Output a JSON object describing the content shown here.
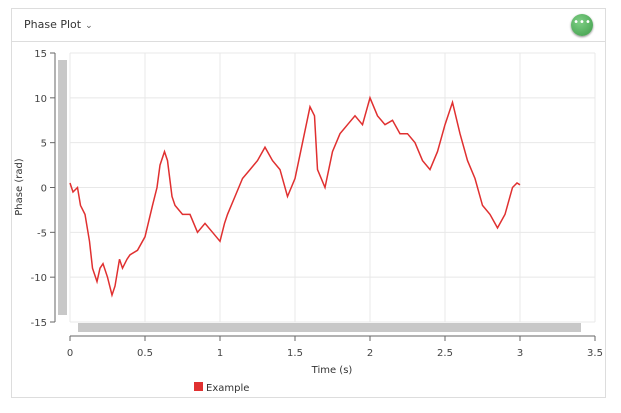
{
  "header": {
    "title": "Phase Plot",
    "more_icon": "ellipsis-icon"
  },
  "chart_data": {
    "type": "line",
    "xlabel": "Time (s)",
    "ylabel": "Phase (rad)",
    "xlim": [
      0,
      3.5
    ],
    "ylim": [
      -15,
      15
    ],
    "xticks": [
      "0",
      "0.5",
      "1",
      "1.5",
      "2",
      "2.5",
      "3",
      "3.5"
    ],
    "yticks": [
      "15",
      "10",
      "5",
      "0",
      "-5",
      "-10",
      "-15"
    ],
    "grid": true,
    "legend": "bottom-left",
    "series": [
      {
        "name": "Example",
        "color": "#e03030",
        "x": [
          0,
          0.02,
          0.05,
          0.07,
          0.1,
          0.13,
          0.15,
          0.18,
          0.2,
          0.22,
          0.25,
          0.28,
          0.3,
          0.33,
          0.35,
          0.38,
          0.4,
          0.45,
          0.5,
          0.55,
          0.58,
          0.6,
          0.63,
          0.65,
          0.68,
          0.7,
          0.75,
          0.8,
          0.85,
          0.9,
          0.95,
          1.0,
          1.03,
          1.05,
          1.1,
          1.15,
          1.2,
          1.25,
          1.3,
          1.35,
          1.4,
          1.45,
          1.5,
          1.55,
          1.6,
          1.63,
          1.65,
          1.7,
          1.75,
          1.8,
          1.85,
          1.9,
          1.95,
          2.0,
          2.05,
          2.1,
          2.15,
          2.2,
          2.25,
          2.3,
          2.35,
          2.4,
          2.45,
          2.5,
          2.55,
          2.6,
          2.65,
          2.7,
          2.75,
          2.8,
          2.85,
          2.9,
          2.95,
          2.98,
          3.0
        ],
        "y": [
          0.5,
          -0.5,
          0,
          -2,
          -3,
          -6,
          -9,
          -10.5,
          -9,
          -8.5,
          -10,
          -12,
          -11,
          -8,
          -9,
          -8,
          -7.5,
          -7,
          -5.5,
          -2,
          0,
          2.5,
          4,
          3,
          -1,
          -2,
          -3,
          -3,
          -5,
          -4,
          -5,
          -6,
          -4,
          -3,
          -1,
          1,
          2,
          3,
          4.5,
          3,
          2,
          -1,
          1,
          5,
          9,
          8,
          2,
          0,
          4,
          6,
          7,
          8,
          7,
          10,
          8,
          7,
          7.5,
          6,
          6,
          5,
          3,
          2,
          4,
          7,
          9.5,
          6,
          3,
          1,
          -2,
          -3,
          -4.5,
          -3,
          0,
          0.5,
          0.3
        ]
      }
    ]
  }
}
